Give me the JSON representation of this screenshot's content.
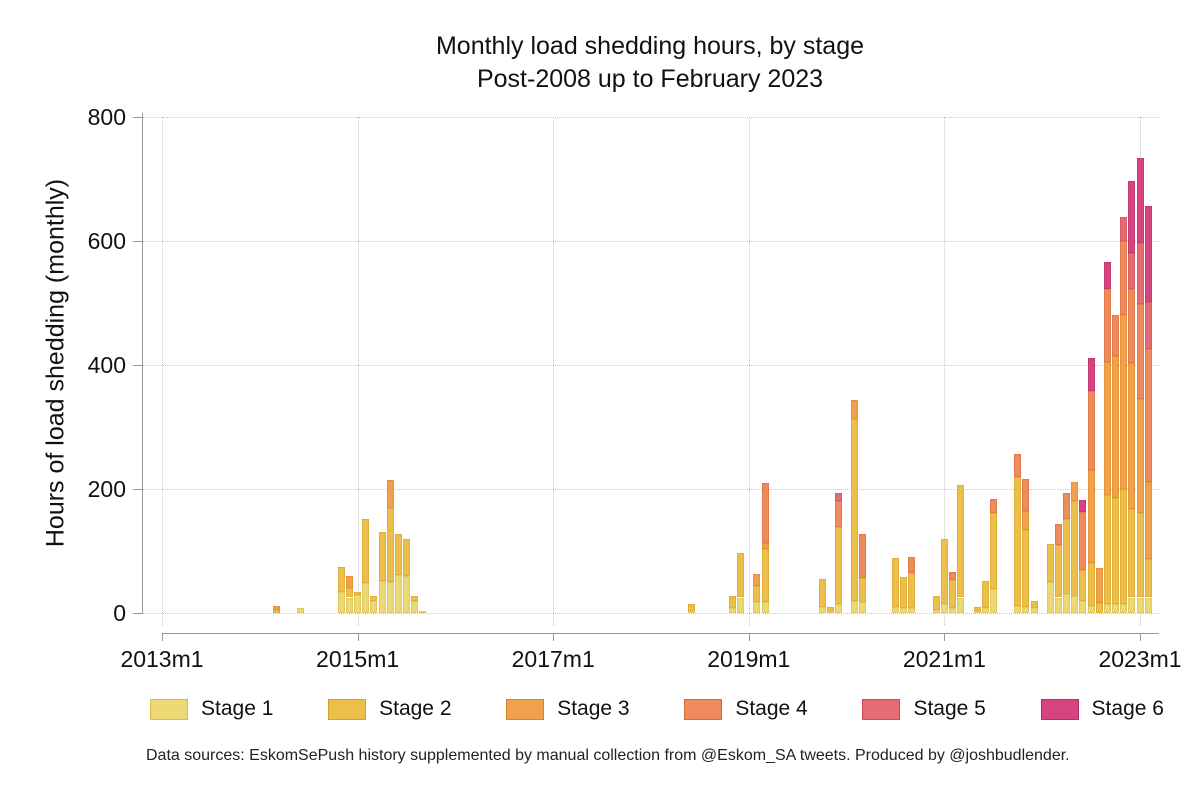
{
  "title": {
    "line1": "Monthly load shedding hours, by stage",
    "line2": "Post-2008 up to February 2023"
  },
  "footnote": "Data sources: EskomSePush history supplemented by manual collection from @Eskom_SA tweets. Produced by @joshbudlender.",
  "chart_data": {
    "type": "bar",
    "stacked": true,
    "title": "Monthly load shedding hours, by stage",
    "subtitle": "Post-2008 up to February 2023",
    "xlabel": "",
    "ylabel": "Hours of load shedding (monthly)",
    "ylim": [
      0,
      800
    ],
    "yticks": [
      0,
      200,
      400,
      600,
      800
    ],
    "xticks": [
      "2013m1",
      "2015m1",
      "2017m1",
      "2019m1",
      "2021m1",
      "2023m1"
    ],
    "grid": "dotted",
    "legend_position": "bottom",
    "stages": [
      {
        "name": "Stage 1",
        "color": "#edd973",
        "border": "#d8b952"
      },
      {
        "name": "Stage 2",
        "color": "#ebbf4a",
        "border": "#d49f2f"
      },
      {
        "name": "Stage 3",
        "color": "#f0a14b",
        "border": "#d9822c"
      },
      {
        "name": "Stage 4",
        "color": "#ee8a5e",
        "border": "#d5693b"
      },
      {
        "name": "Stage 5",
        "color": "#e56c72",
        "border": "#cc4b54"
      },
      {
        "name": "Stage 6",
        "color": "#d6437f",
        "border": "#b52f63"
      }
    ],
    "months": [
      {
        "label": "2014m3",
        "m": 14,
        "values": [
          0,
          5,
          7,
          0,
          0,
          0
        ]
      },
      {
        "label": "2014m6",
        "m": 17,
        "values": [
          8,
          0,
          0,
          0,
          0,
          0
        ]
      },
      {
        "label": "2014m11",
        "m": 22,
        "values": [
          34,
          40,
          0,
          0,
          0,
          0
        ]
      },
      {
        "label": "2014m12",
        "m": 23,
        "values": [
          25,
          15,
          19,
          0,
          0,
          0
        ]
      },
      {
        "label": "2015m1",
        "m": 24,
        "values": [
          29,
          5,
          0,
          0,
          0,
          0
        ]
      },
      {
        "label": "2015m2",
        "m": 25,
        "values": [
          48,
          103,
          0,
          0,
          0,
          0
        ]
      },
      {
        "label": "2015m3",
        "m": 26,
        "values": [
          19,
          8,
          0,
          0,
          0,
          0
        ]
      },
      {
        "label": "2015m4",
        "m": 27,
        "values": [
          52,
          79,
          0,
          0,
          0,
          0
        ]
      },
      {
        "label": "2015m5",
        "m": 28,
        "values": [
          50,
          120,
          44,
          0,
          0,
          0
        ]
      },
      {
        "label": "2015m6",
        "m": 29,
        "values": [
          62,
          66,
          0,
          0,
          0,
          0
        ]
      },
      {
        "label": "2015m7",
        "m": 30,
        "values": [
          60,
          60,
          0,
          0,
          0,
          0
        ]
      },
      {
        "label": "2015m8",
        "m": 31,
        "values": [
          19,
          8,
          0,
          0,
          0,
          0
        ]
      },
      {
        "label": "2015m9",
        "m": 32,
        "values": [
          3,
          0,
          0,
          0,
          0,
          0
        ]
      },
      {
        "label": "2018m6",
        "m": 65,
        "values": [
          4,
          10,
          0,
          0,
          0,
          0
        ]
      },
      {
        "label": "2018m11",
        "m": 70,
        "values": [
          8,
          20,
          0,
          0,
          0,
          0
        ]
      },
      {
        "label": "2018m12",
        "m": 71,
        "values": [
          25,
          72,
          0,
          0,
          0,
          0
        ]
      },
      {
        "label": "2019m2",
        "m": 73,
        "values": [
          17,
          26,
          20,
          0,
          0,
          0
        ]
      },
      {
        "label": "2019m3",
        "m": 74,
        "values": [
          18,
          85,
          10,
          96,
          0,
          0
        ]
      },
      {
        "label": "2019m10",
        "m": 81,
        "values": [
          10,
          45,
          0,
          0,
          0,
          0
        ]
      },
      {
        "label": "2019m11",
        "m": 82,
        "values": [
          3,
          6,
          0,
          0,
          0,
          0
        ]
      },
      {
        "label": "2019m12",
        "m": 83,
        "values": [
          15,
          123,
          0,
          43,
          13,
          0
        ]
      },
      {
        "label": "2020m2",
        "m": 85,
        "values": [
          20,
          293,
          30,
          0,
          0,
          0
        ]
      },
      {
        "label": "2020m3",
        "m": 86,
        "values": [
          18,
          38,
          0,
          71,
          0,
          0
        ]
      },
      {
        "label": "2020m7",
        "m": 90,
        "values": [
          10,
          78,
          0,
          0,
          0,
          0
        ]
      },
      {
        "label": "2020m8",
        "m": 91,
        "values": [
          8,
          50,
          0,
          0,
          0,
          0
        ]
      },
      {
        "label": "2020m9",
        "m": 92,
        "values": [
          8,
          56,
          0,
          27,
          0,
          0
        ]
      },
      {
        "label": "2020m12",
        "m": 95,
        "values": [
          5,
          23,
          0,
          0,
          0,
          0
        ]
      },
      {
        "label": "2021m1",
        "m": 96,
        "values": [
          15,
          105,
          0,
          0,
          0,
          0
        ]
      },
      {
        "label": "2021m2",
        "m": 97,
        "values": [
          8,
          45,
          0,
          13,
          0,
          0
        ]
      },
      {
        "label": "2021m3",
        "m": 98,
        "values": [
          25,
          182,
          0,
          0,
          0,
          0
        ]
      },
      {
        "label": "2021m5",
        "m": 100,
        "values": [
          3,
          7,
          0,
          0,
          0,
          0
        ]
      },
      {
        "label": "2021m6",
        "m": 101,
        "values": [
          8,
          43,
          0,
          0,
          0,
          0
        ]
      },
      {
        "label": "2021m7",
        "m": 102,
        "values": [
          39,
          122,
          0,
          23,
          0,
          0
        ]
      },
      {
        "label": "2021m10",
        "m": 105,
        "values": [
          12,
          207,
          0,
          37,
          0,
          0
        ]
      },
      {
        "label": "2021m11",
        "m": 106,
        "values": [
          10,
          124,
          30,
          52,
          0,
          0
        ]
      },
      {
        "label": "2021m12",
        "m": 107,
        "values": [
          8,
          12,
          0,
          0,
          0,
          0
        ]
      },
      {
        "label": "2022m2",
        "m": 109,
        "values": [
          50,
          62,
          0,
          0,
          0,
          0
        ]
      },
      {
        "label": "2022m3",
        "m": 110,
        "values": [
          25,
          85,
          0,
          33,
          0,
          0
        ]
      },
      {
        "label": "2022m4",
        "m": 111,
        "values": [
          30,
          121,
          0,
          42,
          0,
          0
        ]
      },
      {
        "label": "2022m5",
        "m": 112,
        "values": [
          28,
          152,
          32,
          0,
          0,
          0
        ]
      },
      {
        "label": "2022m6",
        "m": 113,
        "values": [
          20,
          50,
          0,
          93,
          0,
          19
        ]
      },
      {
        "label": "2022m7",
        "m": 114,
        "values": [
          12,
          68,
          150,
          128,
          0,
          54
        ]
      },
      {
        "label": "2022m8",
        "m": 115,
        "values": [
          0,
          16,
          56,
          0,
          0,
          0
        ]
      },
      {
        "label": "2022m9",
        "m": 116,
        "values": [
          15,
          175,
          215,
          118,
          0,
          43
        ]
      },
      {
        "label": "2022m10",
        "m": 117,
        "values": [
          15,
          170,
          230,
          65,
          0,
          0
        ]
      },
      {
        "label": "2022m11",
        "m": 118,
        "values": [
          15,
          185,
          280,
          120,
          38,
          0
        ]
      },
      {
        "label": "2022m12",
        "m": 119,
        "values": [
          25,
          142,
          237,
          118,
          59,
          116
        ]
      },
      {
        "label": "2023m1",
        "m": 120,
        "values": [
          25,
          137,
          183,
          153,
          99,
          137
        ]
      },
      {
        "label": "2023m2",
        "m": 121,
        "values": [
          25,
          62,
          124,
          215,
          75,
          156
        ]
      }
    ]
  }
}
